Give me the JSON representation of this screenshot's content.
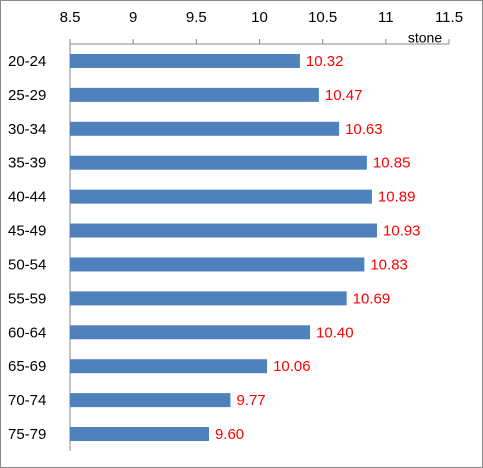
{
  "chart_data": {
    "type": "barh",
    "x_label": "stone",
    "categories": [
      "20-24",
      "25-29",
      "30-34",
      "35-39",
      "40-44",
      "45-49",
      "50-54",
      "55-59",
      "60-64",
      "65-69",
      "70-74",
      "75-79"
    ],
    "values": [
      10.32,
      10.47,
      10.63,
      10.85,
      10.89,
      10.93,
      10.83,
      10.69,
      10.4,
      10.06,
      9.77,
      9.6
    ],
    "value_labels": [
      "10.32",
      "10.47",
      "10.63",
      "10.85",
      "10.89",
      "10.93",
      "10.83",
      "10.69",
      "10.40",
      "10.06",
      "9.77",
      "9.60"
    ],
    "color": "#4f81bd",
    "label_color": "#ff0000",
    "xlim": [
      8.5,
      11.5
    ],
    "xticks": [
      8.5,
      9,
      9.5,
      10,
      10.5,
      11,
      11.5
    ]
  }
}
